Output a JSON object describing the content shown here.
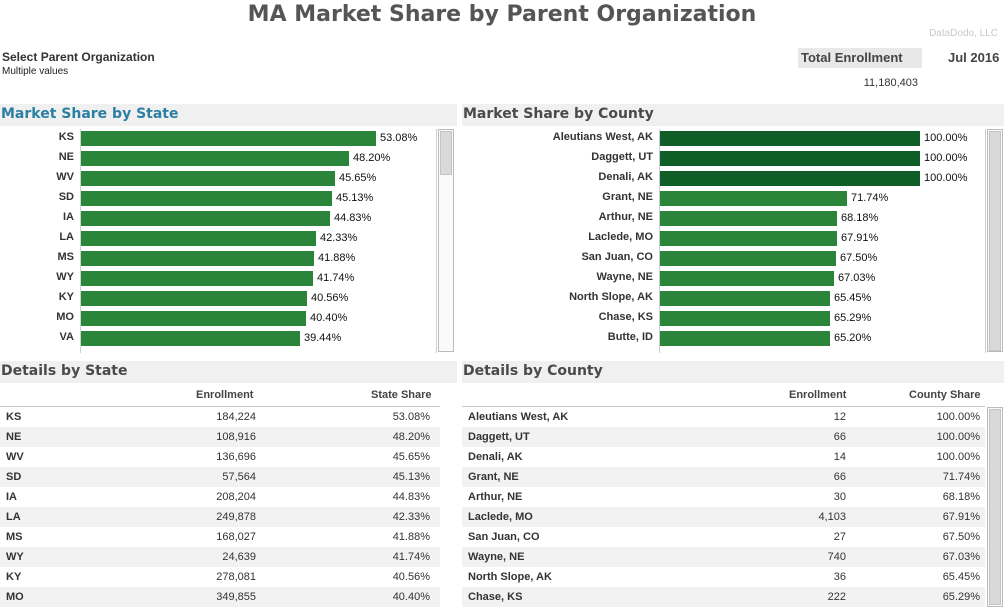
{
  "header": {
    "title": "MA Market Share by Parent Organization",
    "watermark": "DataDodo, LLC"
  },
  "filter": {
    "title": "Select Parent Organization",
    "value": "Multiple values"
  },
  "kpi": {
    "label": "Total Enrollment",
    "date": "Jul 2016",
    "value": "11,180,403"
  },
  "colors": {
    "bar": "#2a853b",
    "bar_dark": "#0f5e28",
    "state_header": "#2b7fa3"
  },
  "state_chart": {
    "title": "Market Share by State",
    "chart_data": {
      "type": "bar",
      "orientation": "horizontal",
      "categories": [
        "KS",
        "NE",
        "WV",
        "SD",
        "IA",
        "LA",
        "MS",
        "WY",
        "KY",
        "MO",
        "VA"
      ],
      "values": [
        53.08,
        48.2,
        45.65,
        45.13,
        44.83,
        42.33,
        41.88,
        41.74,
        40.56,
        40.4,
        39.44
      ],
      "labels": [
        "53.08%",
        "48.20%",
        "45.65%",
        "45.13%",
        "44.83%",
        "42.33%",
        "41.88%",
        "41.74%",
        "40.56%",
        "40.40%",
        "39.44%"
      ],
      "xlim": [
        0,
        100
      ]
    }
  },
  "county_chart": {
    "title": "Market Share by County",
    "chart_data": {
      "type": "bar",
      "orientation": "horizontal",
      "categories": [
        "Aleutians West, AK",
        "Daggett, UT",
        "Denali, AK",
        "Grant, NE",
        "Arthur, NE",
        "Laclede, MO",
        "San Juan, CO",
        "Wayne, NE",
        "North Slope, AK",
        "Chase, KS",
        "Butte, ID"
      ],
      "values": [
        100.0,
        100.0,
        100.0,
        71.74,
        68.18,
        67.91,
        67.5,
        67.03,
        65.45,
        65.29,
        65.2
      ],
      "labels": [
        "100.00%",
        "100.00%",
        "100.00%",
        "71.74%",
        "68.18%",
        "67.91%",
        "67.50%",
        "67.03%",
        "65.45%",
        "65.29%",
        "65.20%"
      ],
      "xlim": [
        0,
        100
      ]
    }
  },
  "state_table": {
    "title": "Details by State",
    "columns": [
      "Enrollment",
      "State Share"
    ],
    "rows": [
      {
        "name": "KS",
        "enrollment": "184,224",
        "share": "53.08%"
      },
      {
        "name": "NE",
        "enrollment": "108,916",
        "share": "48.20%"
      },
      {
        "name": "WV",
        "enrollment": "136,696",
        "share": "45.65%"
      },
      {
        "name": "SD",
        "enrollment": "57,564",
        "share": "45.13%"
      },
      {
        "name": "IA",
        "enrollment": "208,204",
        "share": "44.83%"
      },
      {
        "name": "LA",
        "enrollment": "249,878",
        "share": "42.33%"
      },
      {
        "name": "MS",
        "enrollment": "168,027",
        "share": "41.88%"
      },
      {
        "name": "WY",
        "enrollment": "24,639",
        "share": "41.74%"
      },
      {
        "name": "KY",
        "enrollment": "278,081",
        "share": "40.56%"
      },
      {
        "name": "MO",
        "enrollment": "349,855",
        "share": "40.40%"
      }
    ]
  },
  "county_table": {
    "title": "Details by County",
    "columns": [
      "Enrollment",
      "County Share"
    ],
    "rows": [
      {
        "name": "Aleutians West, AK",
        "enrollment": "12",
        "share": "100.00%"
      },
      {
        "name": "Daggett, UT",
        "enrollment": "66",
        "share": "100.00%"
      },
      {
        "name": "Denali, AK",
        "enrollment": "14",
        "share": "100.00%"
      },
      {
        "name": "Grant, NE",
        "enrollment": "66",
        "share": "71.74%"
      },
      {
        "name": "Arthur, NE",
        "enrollment": "30",
        "share": "68.18%"
      },
      {
        "name": "Laclede, MO",
        "enrollment": "4,103",
        "share": "67.91%"
      },
      {
        "name": "San Juan, CO",
        "enrollment": "27",
        "share": "67.50%"
      },
      {
        "name": "Wayne, NE",
        "enrollment": "740",
        "share": "67.03%"
      },
      {
        "name": "North Slope, AK",
        "enrollment": "36",
        "share": "65.45%"
      },
      {
        "name": "Chase, KS",
        "enrollment": "222",
        "share": "65.29%"
      }
    ]
  }
}
